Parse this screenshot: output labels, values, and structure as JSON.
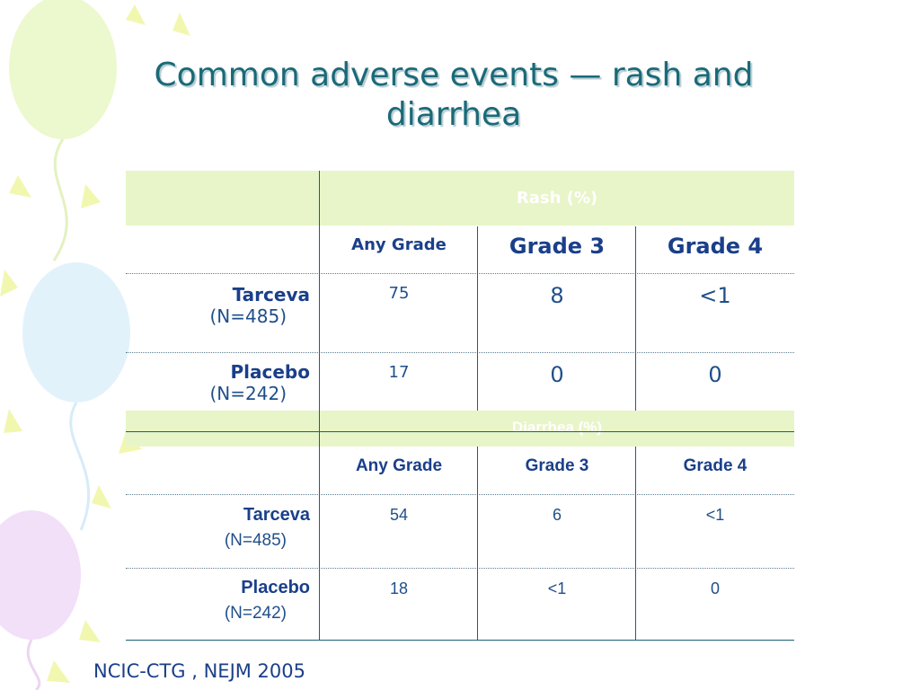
{
  "slide": {
    "title": "Common adverse events — rash and diarrhea",
    "source": "NCIC-CTG , NEJM 2005"
  },
  "rash_table": {
    "heading": "Rash (%)",
    "columns": [
      "Any Grade",
      "Grade 3",
      "Grade 4"
    ],
    "rows": [
      {
        "name": "Tarceva",
        "n": "(N=485)",
        "values": [
          "75",
          "8",
          "<1"
        ]
      },
      {
        "name": "Placebo",
        "n": "(N=242)",
        "values": [
          "17",
          "0",
          "0"
        ]
      }
    ]
  },
  "diarrhea_table": {
    "heading": "Diarrhea (%)",
    "columns": [
      "Any Grade",
      "Grade 3",
      "Grade 4"
    ],
    "rows": [
      {
        "name": "Tarceva",
        "n": "(N=485)",
        "values": [
          "54",
          "6",
          "<1"
        ]
      },
      {
        "name": "Placebo",
        "n": "(N=242)",
        "values": [
          "18",
          "<1",
          "0"
        ]
      }
    ]
  },
  "colors": {
    "title": "#1a6a78",
    "table_text": "#1a3f8a",
    "band": "#e8f5c8",
    "rule": "#1c5f7a"
  }
}
